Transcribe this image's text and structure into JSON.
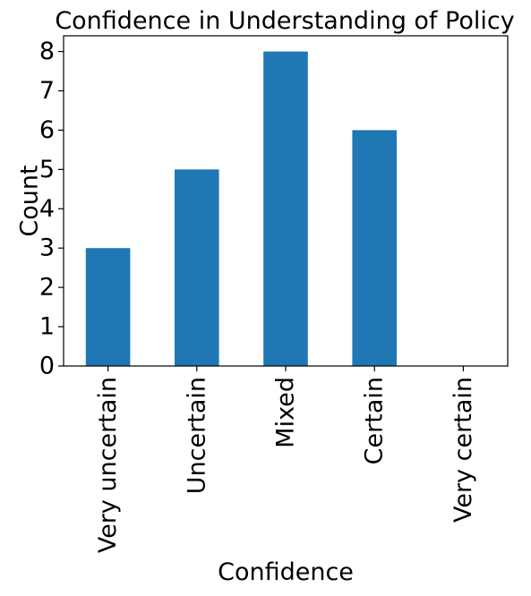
{
  "chart_data": {
    "type": "bar",
    "title": "Confidence in Understanding of Policy",
    "xlabel": "Confidence",
    "ylabel": "Count",
    "categories": [
      "Very uncertain",
      "Uncertain",
      "Mixed",
      "Certain",
      "Very certain"
    ],
    "values": [
      3,
      5,
      8,
      6,
      0
    ],
    "yticks": [
      "0",
      "1",
      "2",
      "3",
      "4",
      "5",
      "6",
      "7",
      "8"
    ],
    "ylim": [
      0,
      8.4
    ],
    "bar_color": "#1f77b4",
    "grid": false,
    "legend": "none"
  }
}
